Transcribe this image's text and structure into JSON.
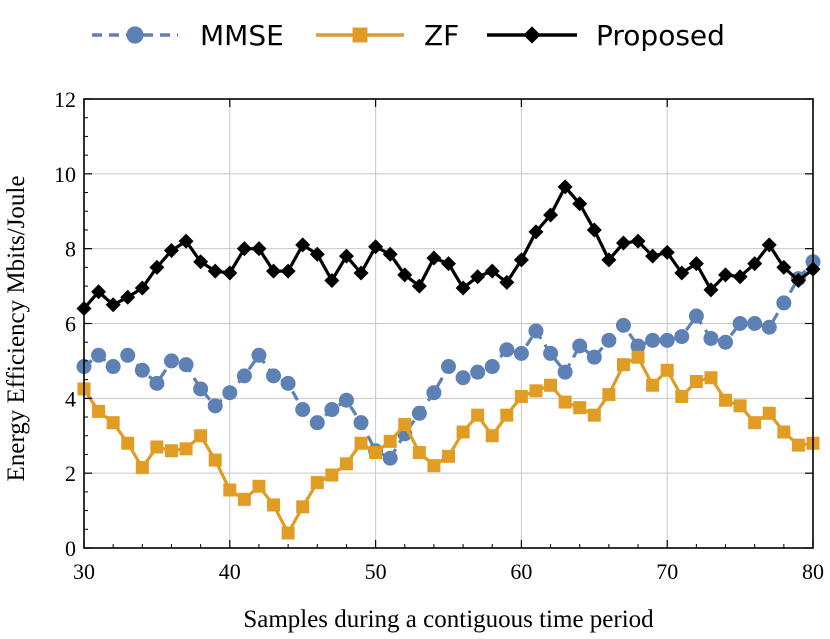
{
  "chart_data": {
    "type": "line",
    "title": "",
    "xlabel": "Samples during a contiguous time period",
    "ylabel": "Energy Efficiency Mbits/Joule",
    "xlim": [
      30,
      80
    ],
    "ylim": [
      0,
      12
    ],
    "xticks": [
      30,
      40,
      50,
      60,
      70,
      80
    ],
    "yticks": [
      0,
      2,
      4,
      6,
      8,
      10,
      12
    ],
    "grid": true,
    "legend_position": "top",
    "x": [
      30,
      31,
      32,
      33,
      34,
      35,
      36,
      37,
      38,
      39,
      40,
      41,
      42,
      43,
      44,
      45,
      46,
      47,
      48,
      49,
      50,
      51,
      52,
      53,
      54,
      55,
      56,
      57,
      58,
      59,
      60,
      61,
      62,
      63,
      64,
      65,
      66,
      67,
      68,
      69,
      70,
      71,
      72,
      73,
      74,
      75,
      76,
      77,
      78,
      79,
      80
    ],
    "series": [
      {
        "name": "MMSE",
        "color": "#5e81b5",
        "line_style": "dashed",
        "marker": "circle",
        "values": [
          4.85,
          5.15,
          4.85,
          5.15,
          4.75,
          4.4,
          5.0,
          4.9,
          4.25,
          3.8,
          4.15,
          4.6,
          5.15,
          4.6,
          4.4,
          3.7,
          3.35,
          3.7,
          3.95,
          3.35,
          2.6,
          2.4,
          3.05,
          3.6,
          4.15,
          4.85,
          4.55,
          4.7,
          4.85,
          5.3,
          5.2,
          5.8,
          5.2,
          4.7,
          5.4,
          5.1,
          5.55,
          5.95,
          5.4,
          5.55,
          5.55,
          5.65,
          6.2,
          5.6,
          5.5,
          6.0,
          6.0,
          5.9,
          6.55,
          7.2,
          7.65
        ]
      },
      {
        "name": "ZF",
        "color": "#e19c24",
        "line_style": "solid",
        "marker": "square",
        "values": [
          4.25,
          3.65,
          3.35,
          2.8,
          2.15,
          2.7,
          2.6,
          2.65,
          3.0,
          2.35,
          1.55,
          1.3,
          1.65,
          1.15,
          0.4,
          1.1,
          1.75,
          1.95,
          2.25,
          2.8,
          2.55,
          2.85,
          3.3,
          2.55,
          2.2,
          2.45,
          3.1,
          3.55,
          3.0,
          3.55,
          4.05,
          4.2,
          4.35,
          3.9,
          3.75,
          3.55,
          4.1,
          4.9,
          5.1,
          4.35,
          4.75,
          4.05,
          4.45,
          4.55,
          3.95,
          3.8,
          3.35,
          3.6,
          3.1,
          2.75,
          2.8
        ]
      },
      {
        "name": "Proposed",
        "color": "#000000",
        "line_style": "solid",
        "marker": "diamond",
        "values": [
          6.4,
          6.85,
          6.5,
          6.7,
          6.95,
          7.5,
          7.95,
          8.2,
          7.65,
          7.4,
          7.35,
          8.0,
          8.0,
          7.4,
          7.4,
          8.1,
          7.85,
          7.15,
          7.8,
          7.35,
          8.05,
          7.85,
          7.3,
          7.0,
          7.75,
          7.6,
          6.95,
          7.25,
          7.4,
          7.1,
          7.7,
          8.45,
          8.9,
          9.65,
          9.2,
          8.5,
          7.7,
          8.15,
          8.2,
          7.8,
          7.9,
          7.35,
          7.6,
          6.9,
          7.3,
          7.25,
          7.6,
          8.1,
          7.5,
          7.15,
          7.45
        ]
      }
    ]
  }
}
